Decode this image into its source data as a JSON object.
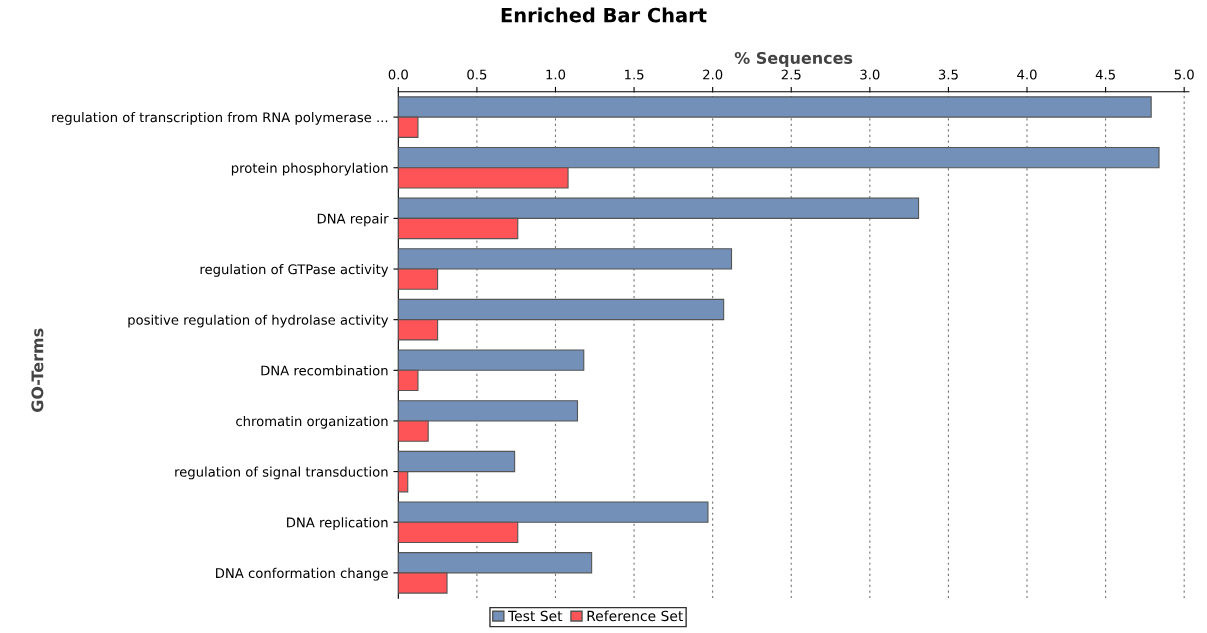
{
  "chart_data": {
    "type": "bar",
    "orientation": "horizontal",
    "title": "Enriched Bar Chart",
    "xlabel": "% Sequences",
    "ylabel": "GO-Terms",
    "categories": [
      "regulation of transcription from RNA polymerase ...",
      "protein phosphorylation",
      "DNA repair",
      "regulation of GTPase activity",
      "positive regulation of hydrolase activity",
      "DNA recombination",
      "chromatin organization",
      "regulation of signal transduction",
      "DNA replication",
      "DNA conformation change"
    ],
    "series": [
      {
        "name": "Test Set",
        "color": "#7390b8",
        "values": [
          4.79,
          4.84,
          3.31,
          2.12,
          2.07,
          1.18,
          1.14,
          0.74,
          1.97,
          1.23
        ]
      },
      {
        "name": "Reference Set",
        "color": "#fe5457",
        "values": [
          0.125,
          1.08,
          0.76,
          0.25,
          0.25,
          0.125,
          0.19,
          0.06,
          0.76,
          0.31
        ]
      }
    ],
    "xlim": [
      0,
      5.03
    ],
    "xticks": [
      {
        "value": 0,
        "label": "0.0"
      },
      0.5,
      {
        "value": 1,
        "label": "1.0"
      },
      1.5,
      {
        "value": 2,
        "label": "2.0"
      },
      2.5,
      {
        "value": 3,
        "label": "3.0"
      },
      3.5,
      {
        "value": 4,
        "label": "4.0"
      },
      4.5,
      {
        "value": 5,
        "label": "5.0"
      }
    ],
    "grid": "x",
    "legend": "bottom"
  }
}
